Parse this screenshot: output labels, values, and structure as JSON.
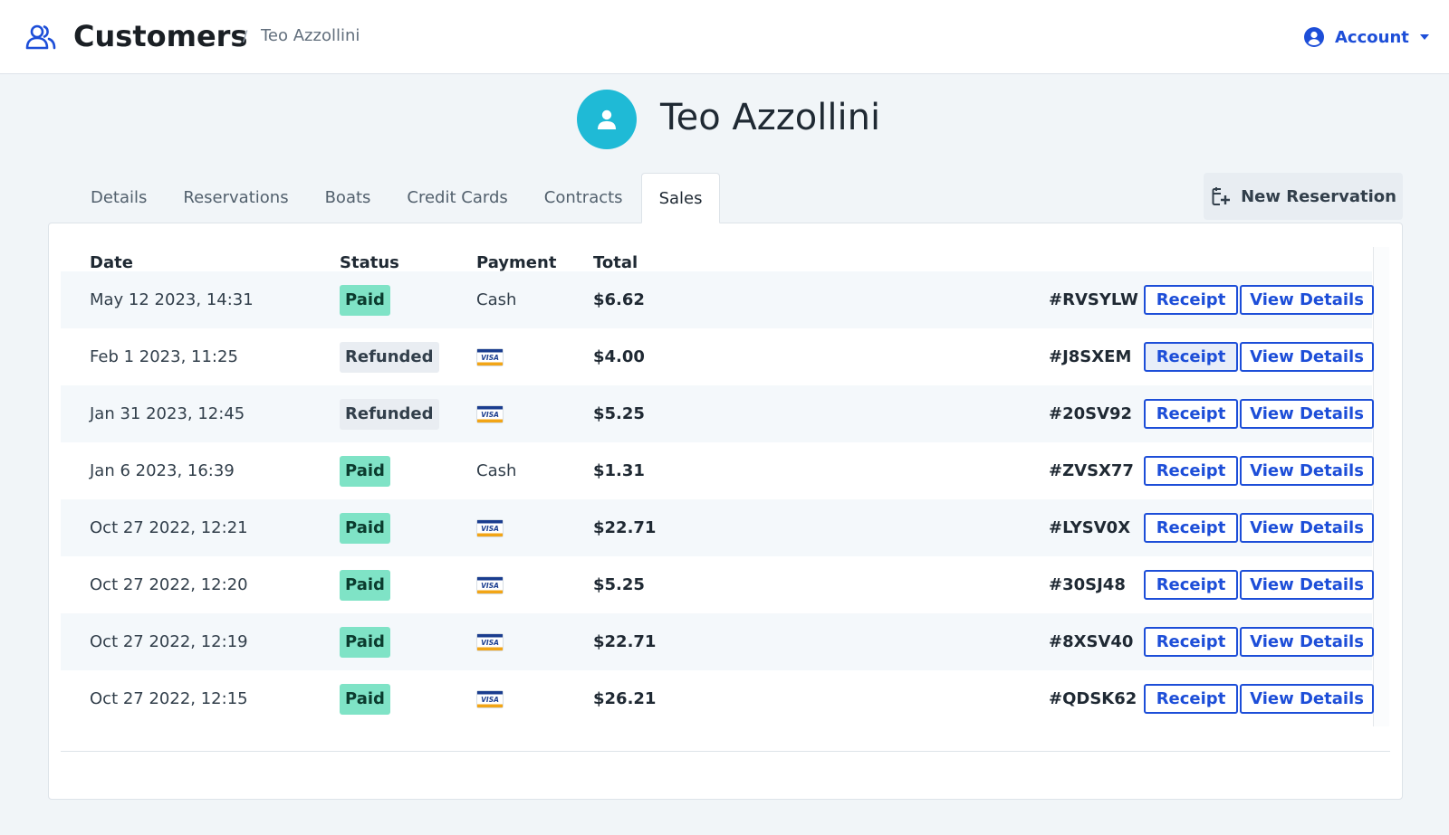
{
  "header": {
    "title": "Customers",
    "breadcrumb_separator": "/",
    "breadcrumb": "Teo Azzollini",
    "account_label": "Account",
    "icons": [
      "users-icon",
      "user-circle-icon",
      "caret-down-icon"
    ]
  },
  "customer": {
    "name": "Teo Azzollini"
  },
  "tabs": [
    {
      "label": "Details",
      "active": false
    },
    {
      "label": "Reservations",
      "active": false
    },
    {
      "label": "Boats",
      "active": false
    },
    {
      "label": "Credit Cards",
      "active": false
    },
    {
      "label": "Contracts",
      "active": false
    },
    {
      "label": "Sales",
      "active": true
    }
  ],
  "new_reservation_label": "New Reservation",
  "table": {
    "columns": [
      "Date",
      "Status",
      "Payment",
      "Total"
    ],
    "receipt_label": "Receipt",
    "details_label": "View Details",
    "rows": [
      {
        "date": "May 12 2023, 14:31",
        "status": "Paid",
        "payment": "Cash",
        "total": "$6.62",
        "code": "#RVSYLW"
      },
      {
        "date": "Feb 1 2023, 11:25",
        "status": "Refunded",
        "payment": "VISA",
        "total": "$4.00",
        "code": "#J8SXEM"
      },
      {
        "date": "Jan 31 2023, 12:45",
        "status": "Refunded",
        "payment": "VISA",
        "total": "$5.25",
        "code": "#20SV92"
      },
      {
        "date": "Jan 6 2023, 16:39",
        "status": "Paid",
        "payment": "Cash",
        "total": "$1.31",
        "code": "#ZVSX77"
      },
      {
        "date": "Oct 27 2022, 12:21",
        "status": "Paid",
        "payment": "VISA",
        "total": "$22.71",
        "code": "#LYSV0X"
      },
      {
        "date": "Oct 27 2022, 12:20",
        "status": "Paid",
        "payment": "VISA",
        "total": "$5.25",
        "code": "#30SJ48"
      },
      {
        "date": "Oct 27 2022, 12:19",
        "status": "Paid",
        "payment": "VISA",
        "total": "$22.71",
        "code": "#8XSV40"
      },
      {
        "date": "Oct 27 2022, 12:15",
        "status": "Paid",
        "payment": "VISA",
        "total": "$26.21",
        "code": "#QDSK62"
      }
    ]
  },
  "colors": {
    "accent": "#1d4ed8",
    "avatar": "#1fbad6",
    "paid_badge": "#7fe3c6",
    "refunded_badge": "#e9edf2",
    "background": "#f1f5f8"
  }
}
